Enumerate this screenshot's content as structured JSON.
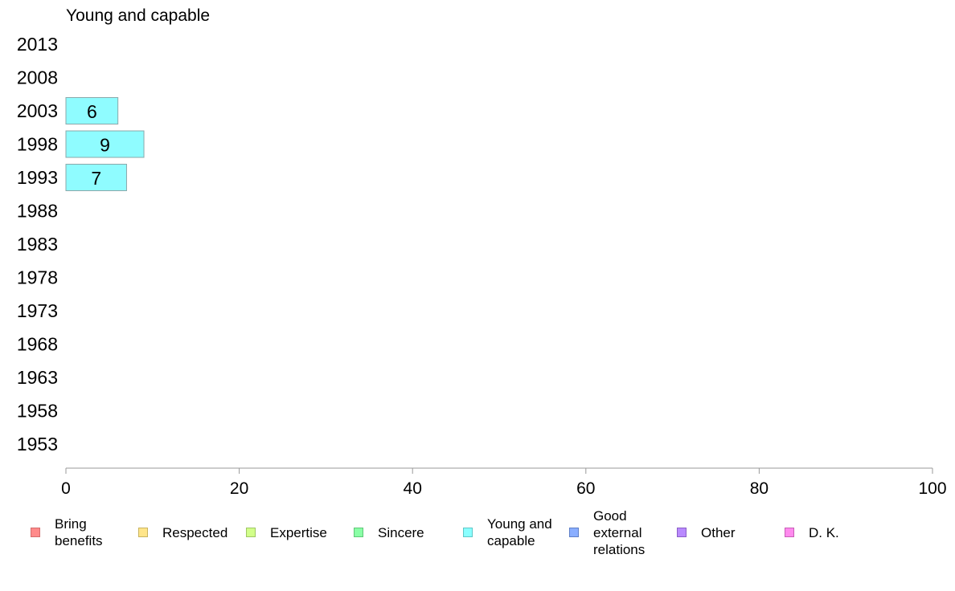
{
  "chart_data": {
    "type": "bar",
    "orientation": "horizontal",
    "title": "Young and capable",
    "categories": [
      "2013",
      "2008",
      "2003",
      "1998",
      "1993",
      "1988",
      "1983",
      "1978",
      "1973",
      "1968",
      "1963",
      "1958",
      "1953"
    ],
    "series": [
      {
        "name": "Young and capable",
        "color": "#8ffcff",
        "values": [
          null,
          null,
          6,
          9,
          7,
          null,
          null,
          null,
          null,
          null,
          null,
          null,
          null
        ]
      }
    ],
    "xlim": [
      0,
      100
    ],
    "xticks": [
      "0",
      "20",
      "40",
      "60",
      "80",
      "100"
    ],
    "grid": false,
    "legend_position": "bottom"
  },
  "legend": {
    "items": [
      {
        "label": "Bring\nbenefits",
        "color": "#ff8a8a",
        "border": "#d46c6c"
      },
      {
        "label": "Respected",
        "color": "#ffe58a",
        "border": "#c9b35e"
      },
      {
        "label": "Expertise",
        "color": "#d2ff8a",
        "border": "#9fc764"
      },
      {
        "label": "Sincere",
        "color": "#8affa6",
        "border": "#5ec777"
      },
      {
        "label": "Young and\ncapable",
        "color": "#8affff",
        "border": "#5ec7c7"
      },
      {
        "label": "Good\nexternal\nrelations",
        "color": "#8aaeff",
        "border": "#5e7fc7"
      },
      {
        "label": "Other",
        "color": "#b98aff",
        "border": "#8a5ec7"
      },
      {
        "label": "D. K.",
        "color": "#ff8aee",
        "border": "#c75eb6"
      }
    ]
  }
}
